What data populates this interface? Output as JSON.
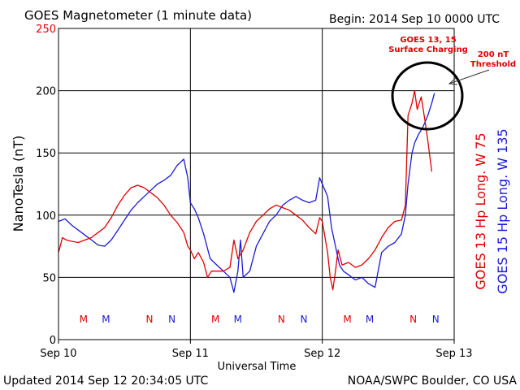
{
  "header": {
    "title": "GOES Magnetometer (1 minute data)",
    "begin": "Begin:  2014 Sep 10 0000 UTC"
  },
  "footer": {
    "updated": "Updated 2014 Sep 12 20:34:05 UTC",
    "source": "NOAA/SWPC Boulder, CO USA"
  },
  "colors": {
    "goes13": "#e00000",
    "goes15": "#1a1adc",
    "annotation": "#e00000",
    "grid": "#000000"
  },
  "chart_data": {
    "type": "line",
    "ylabel": "NanoTesla (nT)",
    "xlabel": "Universal Time",
    "ylim": [
      0,
      250
    ],
    "yticks": [
      0,
      50,
      100,
      150,
      200,
      250
    ],
    "xlim": [
      0,
      3
    ],
    "xticks": [
      {
        "x": 0,
        "label": "Sep 10"
      },
      {
        "x": 1,
        "label": "Sep 11"
      },
      {
        "x": 2,
        "label": "Sep 12"
      },
      {
        "x": 3,
        "label": "Sep 13"
      }
    ],
    "right_labels": [
      {
        "text": "GOES 13 Hp   Long. W 75",
        "series": "goes13"
      },
      {
        "text": "GOES 15 Hp   Long. W 135",
        "series": "goes15"
      }
    ],
    "annotations": {
      "charging_line1": "GOES 13, 15",
      "charging_line2": "Surface Charging",
      "threshold_line1": "200 nT",
      "threshold_line2": "Threshold"
    },
    "markers": [
      {
        "x": 0.19,
        "label": "M",
        "series": "goes13"
      },
      {
        "x": 0.36,
        "label": "M",
        "series": "goes15"
      },
      {
        "x": 0.69,
        "label": "N",
        "series": "goes13"
      },
      {
        "x": 0.86,
        "label": "N",
        "series": "goes15"
      },
      {
        "x": 1.19,
        "label": "M",
        "series": "goes13"
      },
      {
        "x": 1.36,
        "label": "M",
        "series": "goes15"
      },
      {
        "x": 1.69,
        "label": "N",
        "series": "goes13"
      },
      {
        "x": 1.86,
        "label": "N",
        "series": "goes15"
      },
      {
        "x": 2.19,
        "label": "M",
        "series": "goes13"
      },
      {
        "x": 2.36,
        "label": "M",
        "series": "goes15"
      },
      {
        "x": 2.69,
        "label": "N",
        "series": "goes13"
      },
      {
        "x": 2.86,
        "label": "N",
        "series": "goes15"
      }
    ],
    "series": [
      {
        "key": "goes13",
        "values": [
          [
            0.0,
            70
          ],
          [
            0.03,
            82
          ],
          [
            0.06,
            80
          ],
          [
            0.1,
            79
          ],
          [
            0.15,
            78
          ],
          [
            0.2,
            80
          ],
          [
            0.25,
            82
          ],
          [
            0.3,
            86
          ],
          [
            0.35,
            90
          ],
          [
            0.4,
            98
          ],
          [
            0.45,
            108
          ],
          [
            0.5,
            116
          ],
          [
            0.55,
            122
          ],
          [
            0.6,
            124
          ],
          [
            0.65,
            122
          ],
          [
            0.7,
            118
          ],
          [
            0.75,
            114
          ],
          [
            0.8,
            108
          ],
          [
            0.85,
            100
          ],
          [
            0.9,
            94
          ],
          [
            0.95,
            86
          ],
          [
            0.98,
            75
          ],
          [
            1.0,
            72
          ],
          [
            1.03,
            65
          ],
          [
            1.06,
            70
          ],
          [
            1.1,
            62
          ],
          [
            1.13,
            50
          ],
          [
            1.16,
            55
          ],
          [
            1.2,
            55
          ],
          [
            1.25,
            55
          ],
          [
            1.3,
            58
          ],
          [
            1.33,
            80
          ],
          [
            1.36,
            65
          ],
          [
            1.4,
            72
          ],
          [
            1.45,
            86
          ],
          [
            1.5,
            95
          ],
          [
            1.55,
            100
          ],
          [
            1.6,
            105
          ],
          [
            1.65,
            108
          ],
          [
            1.7,
            106
          ],
          [
            1.75,
            104
          ],
          [
            1.8,
            100
          ],
          [
            1.85,
            96
          ],
          [
            1.9,
            90
          ],
          [
            1.95,
            85
          ],
          [
            1.98,
            98
          ],
          [
            2.0,
            95
          ],
          [
            2.04,
            70
          ],
          [
            2.06,
            50
          ],
          [
            2.08,
            40
          ],
          [
            2.1,
            55
          ],
          [
            2.12,
            72
          ],
          [
            2.15,
            60
          ],
          [
            2.2,
            62
          ],
          [
            2.25,
            58
          ],
          [
            2.3,
            60
          ],
          [
            2.35,
            65
          ],
          [
            2.4,
            72
          ],
          [
            2.45,
            82
          ],
          [
            2.5,
            90
          ],
          [
            2.55,
            95
          ],
          [
            2.6,
            96
          ],
          [
            2.63,
            108
          ],
          [
            2.65,
            180
          ],
          [
            2.68,
            190
          ],
          [
            2.7,
            200
          ],
          [
            2.72,
            185
          ],
          [
            2.75,
            195
          ],
          [
            2.78,
            175
          ],
          [
            2.8,
            160
          ],
          [
            2.83,
            135
          ]
        ]
      },
      {
        "key": "goes15",
        "values": [
          [
            0.0,
            95
          ],
          [
            0.05,
            97
          ],
          [
            0.1,
            92
          ],
          [
            0.15,
            88
          ],
          [
            0.2,
            84
          ],
          [
            0.25,
            80
          ],
          [
            0.3,
            76
          ],
          [
            0.35,
            75
          ],
          [
            0.4,
            80
          ],
          [
            0.45,
            88
          ],
          [
            0.5,
            96
          ],
          [
            0.55,
            104
          ],
          [
            0.6,
            110
          ],
          [
            0.65,
            115
          ],
          [
            0.7,
            120
          ],
          [
            0.75,
            125
          ],
          [
            0.8,
            128
          ],
          [
            0.85,
            132
          ],
          [
            0.9,
            140
          ],
          [
            0.95,
            145
          ],
          [
            0.98,
            130
          ],
          [
            1.0,
            110
          ],
          [
            1.03,
            105
          ],
          [
            1.06,
            98
          ],
          [
            1.1,
            85
          ],
          [
            1.15,
            65
          ],
          [
            1.2,
            60
          ],
          [
            1.25,
            55
          ],
          [
            1.3,
            50
          ],
          [
            1.33,
            38
          ],
          [
            1.36,
            55
          ],
          [
            1.38,
            80
          ],
          [
            1.4,
            50
          ],
          [
            1.45,
            55
          ],
          [
            1.5,
            75
          ],
          [
            1.55,
            85
          ],
          [
            1.6,
            95
          ],
          [
            1.65,
            100
          ],
          [
            1.7,
            108
          ],
          [
            1.75,
            112
          ],
          [
            1.8,
            115
          ],
          [
            1.85,
            112
          ],
          [
            1.9,
            110
          ],
          [
            1.95,
            112
          ],
          [
            1.98,
            130
          ],
          [
            2.0,
            125
          ],
          [
            2.04,
            115
          ],
          [
            2.07,
            90
          ],
          [
            2.1,
            75
          ],
          [
            2.13,
            60
          ],
          [
            2.16,
            55
          ],
          [
            2.2,
            52
          ],
          [
            2.25,
            48
          ],
          [
            2.3,
            50
          ],
          [
            2.35,
            45
          ],
          [
            2.4,
            42
          ],
          [
            2.45,
            70
          ],
          [
            2.5,
            75
          ],
          [
            2.55,
            78
          ],
          [
            2.6,
            85
          ],
          [
            2.63,
            100
          ],
          [
            2.65,
            125
          ],
          [
            2.68,
            150
          ],
          [
            2.7,
            158
          ],
          [
            2.73,
            165
          ],
          [
            2.76,
            170
          ],
          [
            2.8,
            180
          ],
          [
            2.83,
            190
          ],
          [
            2.85,
            198
          ]
        ]
      }
    ]
  }
}
